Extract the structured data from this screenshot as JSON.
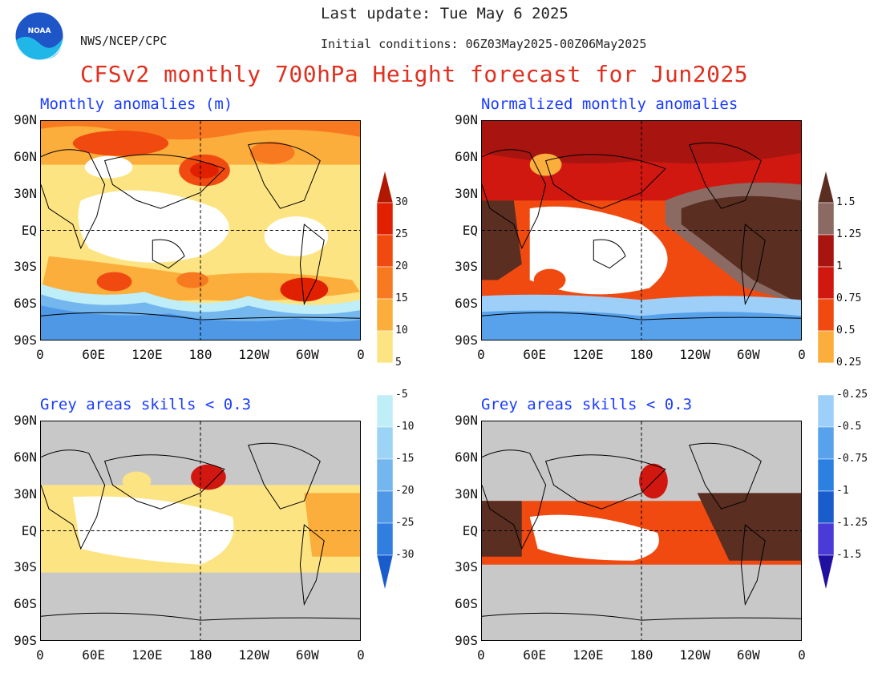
{
  "header": {
    "last_update": "Last update: Tue May 6 2025",
    "initial_conditions": "Initial conditions: 06Z03May2025-00Z06May2025",
    "agency": "NWS/NCEP/CPC",
    "title": "CFSv2 monthly 700hPa Height forecast for Jun2025",
    "logo_text": "NOAA"
  },
  "panels": {
    "top_left": {
      "title": "Monthly anomalies (m)"
    },
    "top_right": {
      "title": "Normalized monthly anomalies"
    },
    "bottom_left": {
      "title": "Grey areas skills < 0.3"
    },
    "bottom_right": {
      "title": "Grey areas skills < 0.3"
    }
  },
  "axes": {
    "lat_labels": [
      "90N",
      "60N",
      "30N",
      "EQ",
      "30S",
      "60S",
      "90S"
    ],
    "lon_labels": [
      "0",
      "60E",
      "120E",
      "180",
      "120W",
      "60W",
      "0"
    ]
  },
  "colorbar_left": {
    "labels": [
      "30",
      "25",
      "20",
      "15",
      "10",
      "5",
      "-5",
      "-10",
      "-15",
      "-20",
      "-25",
      "-30"
    ],
    "colors": [
      "#b01800",
      "#e02000",
      "#f04a10",
      "#f87a20",
      "#fbae3c",
      "#fde482",
      "#ffffff",
      "#bfeef8",
      "#9cd4f6",
      "#74b6ee",
      "#4e98e6",
      "#2f7ee0",
      "#1a5ccc"
    ]
  },
  "colorbar_right": {
    "labels": [
      "1.5",
      "1.25",
      "1",
      "0.75",
      "0.5",
      "0.25",
      "-0.25",
      "-0.5",
      "-0.75",
      "-1",
      "-1.25",
      "-1.5"
    ],
    "colors": [
      "#5a2e20",
      "#8a6a62",
      "#a81410",
      "#d01810",
      "#f04a10",
      "#fbae3c",
      "#ffffff",
      "#9ecff8",
      "#58a2ec",
      "#2c80e2",
      "#1a5ccc",
      "#4a3ad8",
      "#2010a0"
    ]
  },
  "colors": {
    "title_red": "#e03020",
    "panel_title_blue": "#1a3cff",
    "grey_mask": "#c8c8c8"
  }
}
